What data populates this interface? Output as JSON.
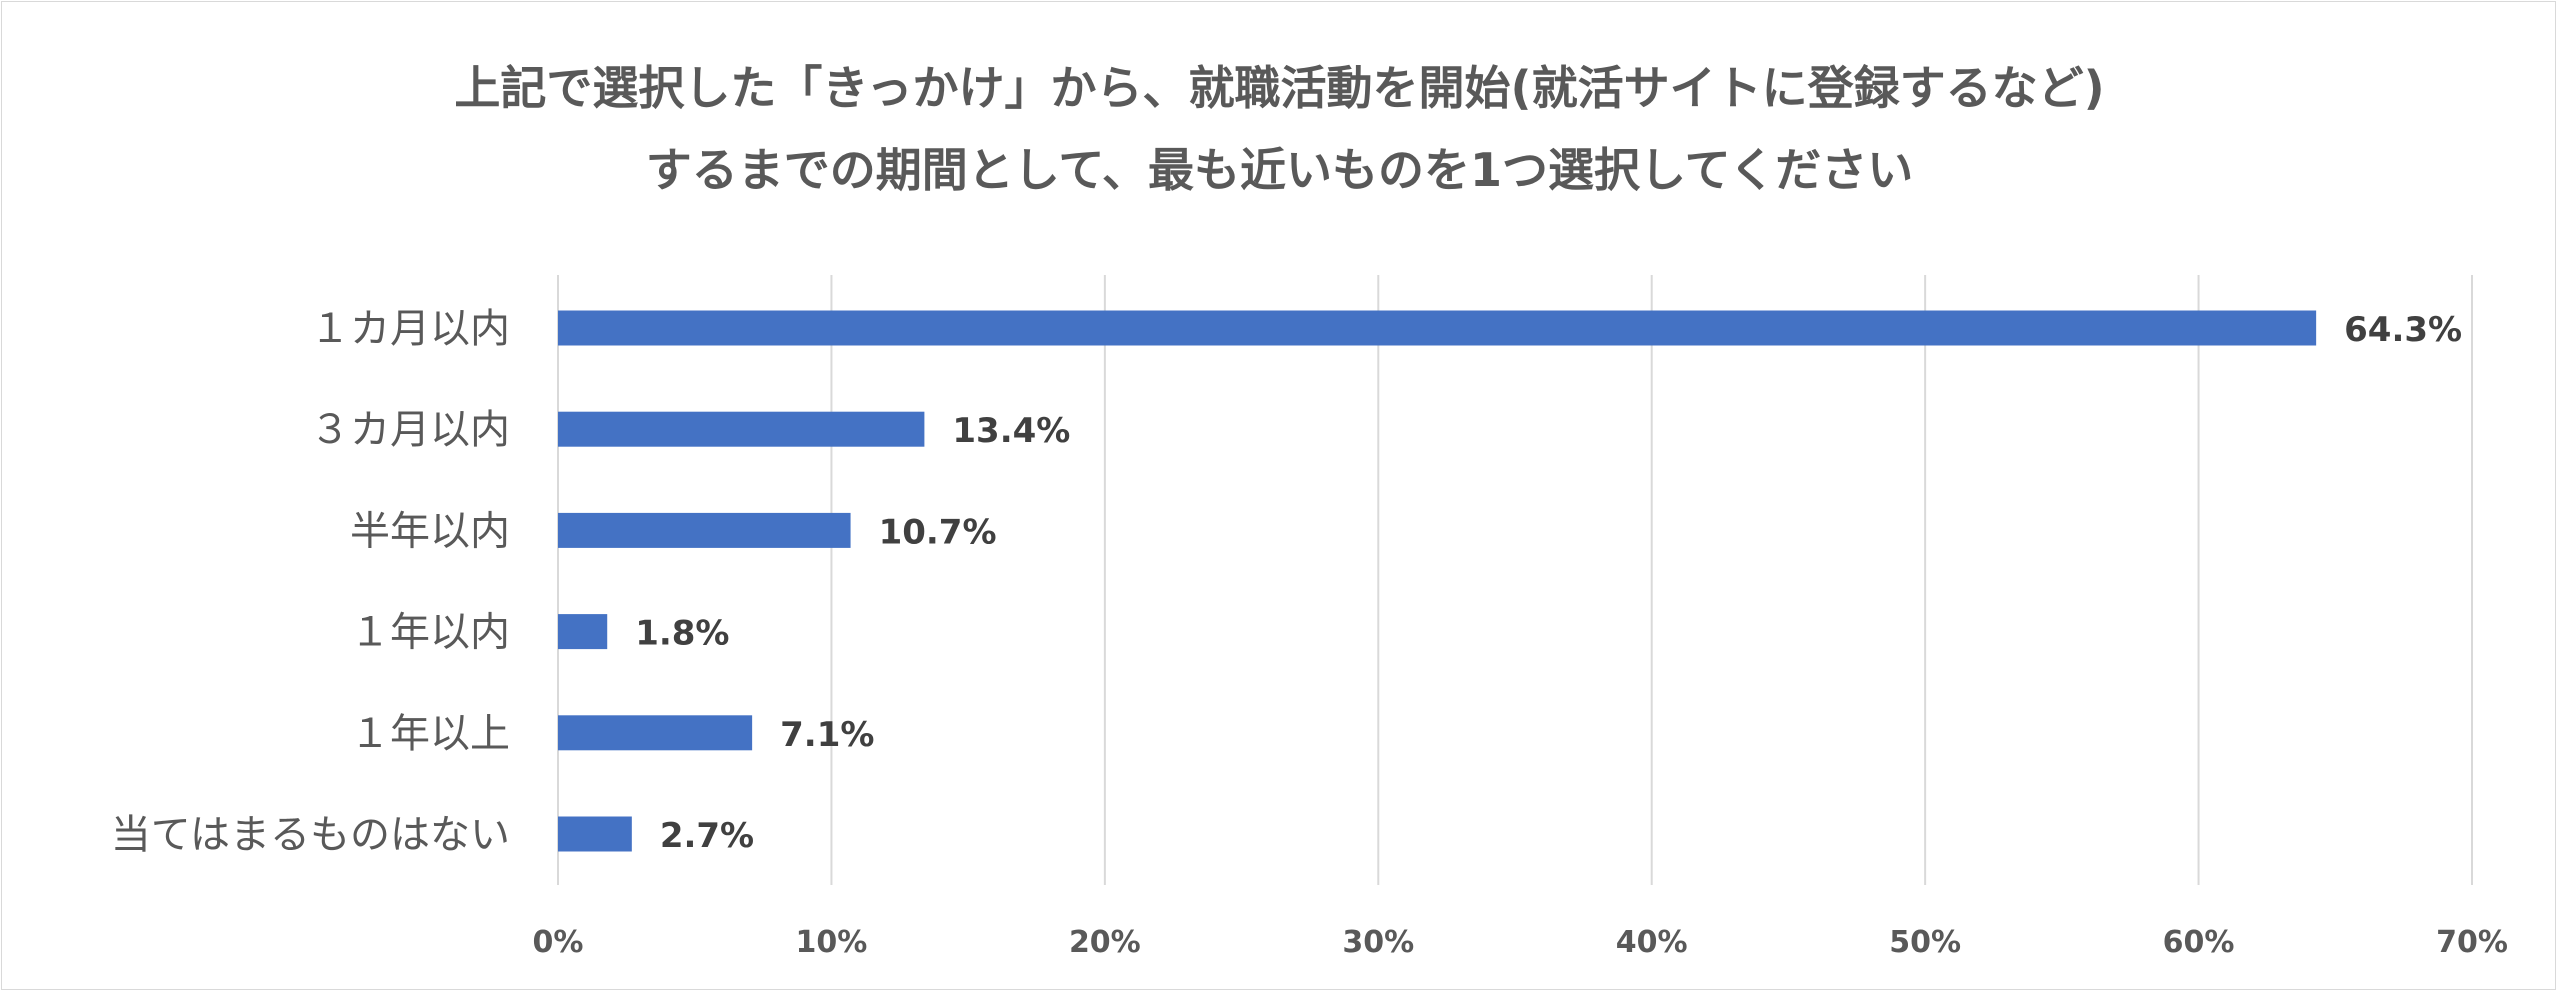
{
  "chart_data": {
    "type": "bar",
    "orientation": "horizontal",
    "title": [
      "上記で選択した「きっかけ」から、就職活動を開始(就活サイトに登録するなど)",
      "するまでの期間として、最も近いものを1つ選択してください"
    ],
    "categories": [
      "１カ月以内",
      "３カ月以内",
      "半年以内",
      "１年以内",
      "１年以上",
      "当てはまるものはない"
    ],
    "values": [
      64.3,
      13.4,
      10.7,
      1.8,
      7.1,
      2.7
    ],
    "data_labels": [
      "64.3%",
      "13.4%",
      "10.7%",
      "1.8%",
      "7.1%",
      "2.7%"
    ],
    "xticks": [
      "0%",
      "10%",
      "20%",
      "30%",
      "40%",
      "50%",
      "60%",
      "70%"
    ],
    "xlim": [
      0,
      70
    ],
    "xlabel": "",
    "ylabel": "",
    "grid": true,
    "bar_color": "#4472c4"
  }
}
